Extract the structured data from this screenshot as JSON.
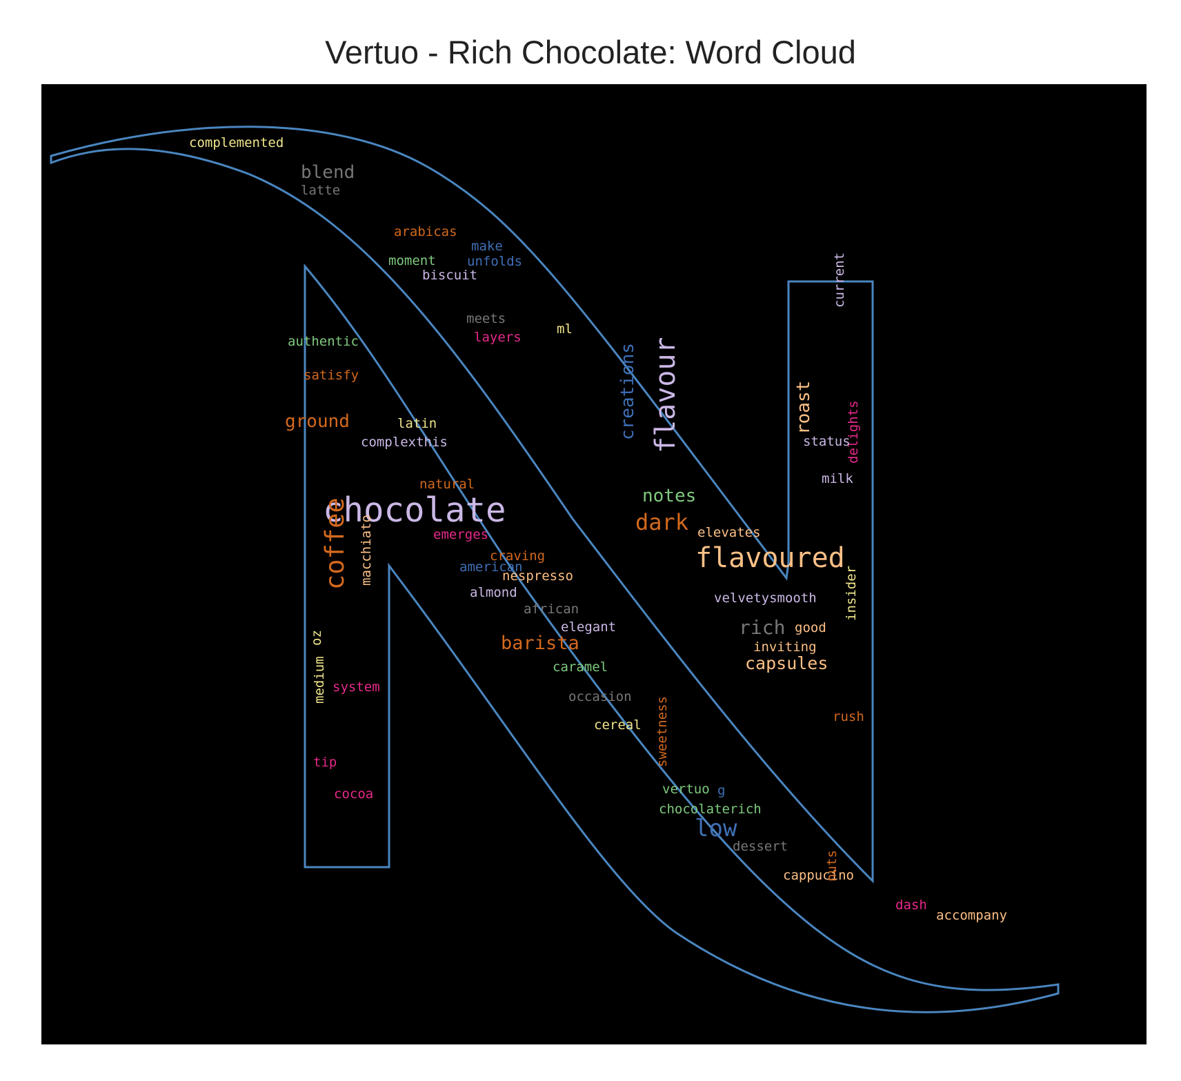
{
  "title": "Vertuo - Rich Chocolate: Word Cloud",
  "outline_color": "#4a86c0",
  "background_color": "#000000",
  "words": [
    {
      "text": "complemented",
      "color": "#f0e68c",
      "orient": "h"
    },
    {
      "text": "blend",
      "color": "#777777",
      "orient": "h"
    },
    {
      "text": "latte",
      "color": "#777777",
      "orient": "h"
    },
    {
      "text": "arabicas",
      "color": "#d2691e",
      "orient": "h"
    },
    {
      "text": "make",
      "color": "#3f6fb5",
      "orient": "h"
    },
    {
      "text": "moment",
      "color": "#7fc97f",
      "orient": "h"
    },
    {
      "text": "unfolds",
      "color": "#3f6fb5",
      "orient": "h"
    },
    {
      "text": "biscuit",
      "color": "#cbb8e6",
      "orient": "h"
    },
    {
      "text": "meets",
      "color": "#777777",
      "orient": "h"
    },
    {
      "text": "layers",
      "color": "#e7298a",
      "orient": "h"
    },
    {
      "text": "ml",
      "color": "#f0e68c",
      "orient": "h"
    },
    {
      "text": "authentic",
      "color": "#7fc97f",
      "orient": "h"
    },
    {
      "text": "satisfy",
      "color": "#d2691e",
      "orient": "h"
    },
    {
      "text": "ground",
      "color": "#d2691e",
      "orient": "h"
    },
    {
      "text": "latin",
      "color": "#f0e68c",
      "orient": "h"
    },
    {
      "text": "complexthis",
      "color": "#cbb8e6",
      "orient": "h"
    },
    {
      "text": "creations",
      "color": "#3f6fb5",
      "orient": "v"
    },
    {
      "text": "flavour",
      "color": "#cbb8e6",
      "orient": "v"
    },
    {
      "text": "current",
      "color": "#cbb8e6",
      "orient": "v"
    },
    {
      "text": "roast",
      "color": "#fdc086",
      "orient": "v"
    },
    {
      "text": "delights",
      "color": "#e7298a",
      "orient": "v"
    },
    {
      "text": "status",
      "color": "#cbb8e6",
      "orient": "h"
    },
    {
      "text": "milk",
      "color": "#cbb8e6",
      "orient": "h"
    },
    {
      "text": "natural",
      "color": "#d2691e",
      "orient": "h"
    },
    {
      "text": "chocolate",
      "color": "#cbb8e6",
      "orient": "h"
    },
    {
      "text": "notes",
      "color": "#7fc97f",
      "orient": "h"
    },
    {
      "text": "dark",
      "color": "#d2691e",
      "orient": "h"
    },
    {
      "text": "elevates",
      "color": "#fdc086",
      "orient": "h"
    },
    {
      "text": "emerges",
      "color": "#e7298a",
      "orient": "h"
    },
    {
      "text": "coffee",
      "color": "#d2691e",
      "orient": "v"
    },
    {
      "text": "macchiato",
      "color": "#fdc086",
      "orient": "v"
    },
    {
      "text": "craving",
      "color": "#d2691e",
      "orient": "h"
    },
    {
      "text": "american",
      "color": "#3f6fb5",
      "orient": "h"
    },
    {
      "text": "nespresso",
      "color": "#fdc086",
      "orient": "h"
    },
    {
      "text": "flavoured",
      "color": "#fdc086",
      "orient": "h"
    },
    {
      "text": "insider",
      "color": "#f0e68c",
      "orient": "v"
    },
    {
      "text": "almond",
      "color": "#cbb8e6",
      "orient": "h"
    },
    {
      "text": "african",
      "color": "#777777",
      "orient": "h"
    },
    {
      "text": "velvetysmooth",
      "color": "#cbb8e6",
      "orient": "h"
    },
    {
      "text": "elegant",
      "color": "#cbb8e6",
      "orient": "h"
    },
    {
      "text": "rich",
      "color": "#777777",
      "orient": "h"
    },
    {
      "text": "good",
      "color": "#fdc086",
      "orient": "h"
    },
    {
      "text": "barista",
      "color": "#d2691e",
      "orient": "h"
    },
    {
      "text": "inviting",
      "color": "#fdc086",
      "orient": "h"
    },
    {
      "text": "oz",
      "color": "#f0e68c",
      "orient": "v"
    },
    {
      "text": "capsules",
      "color": "#fdc086",
      "orient": "h"
    },
    {
      "text": "caramel",
      "color": "#7fc97f",
      "orient": "h"
    },
    {
      "text": "medium",
      "color": "#f0e68c",
      "orient": "v"
    },
    {
      "text": "system",
      "color": "#e7298a",
      "orient": "h"
    },
    {
      "text": "occasion",
      "color": "#777777",
      "orient": "h"
    },
    {
      "text": "cereal",
      "color": "#f0e68c",
      "orient": "h"
    },
    {
      "text": "rush",
      "color": "#d2691e",
      "orient": "h"
    },
    {
      "text": "sweetness",
      "color": "#d2691e",
      "orient": "v"
    },
    {
      "text": "tip",
      "color": "#e7298a",
      "orient": "h"
    },
    {
      "text": "vertuo",
      "color": "#7fc97f",
      "orient": "h"
    },
    {
      "text": "g",
      "color": "#3f6fb5",
      "orient": "h"
    },
    {
      "text": "cocoa",
      "color": "#e7298a",
      "orient": "h"
    },
    {
      "text": "chocolaterich",
      "color": "#7fc97f",
      "orient": "h"
    },
    {
      "text": "low",
      "color": "#3f6fb5",
      "orient": "h"
    },
    {
      "text": "dessert",
      "color": "#777777",
      "orient": "h"
    },
    {
      "text": "cappucino",
      "color": "#fdc086",
      "orient": "h"
    },
    {
      "text": "nuts",
      "color": "#d2691e",
      "orient": "v"
    },
    {
      "text": "dash",
      "color": "#e7298a",
      "orient": "h"
    },
    {
      "text": "accompany",
      "color": "#fdc086",
      "orient": "h"
    }
  ]
}
